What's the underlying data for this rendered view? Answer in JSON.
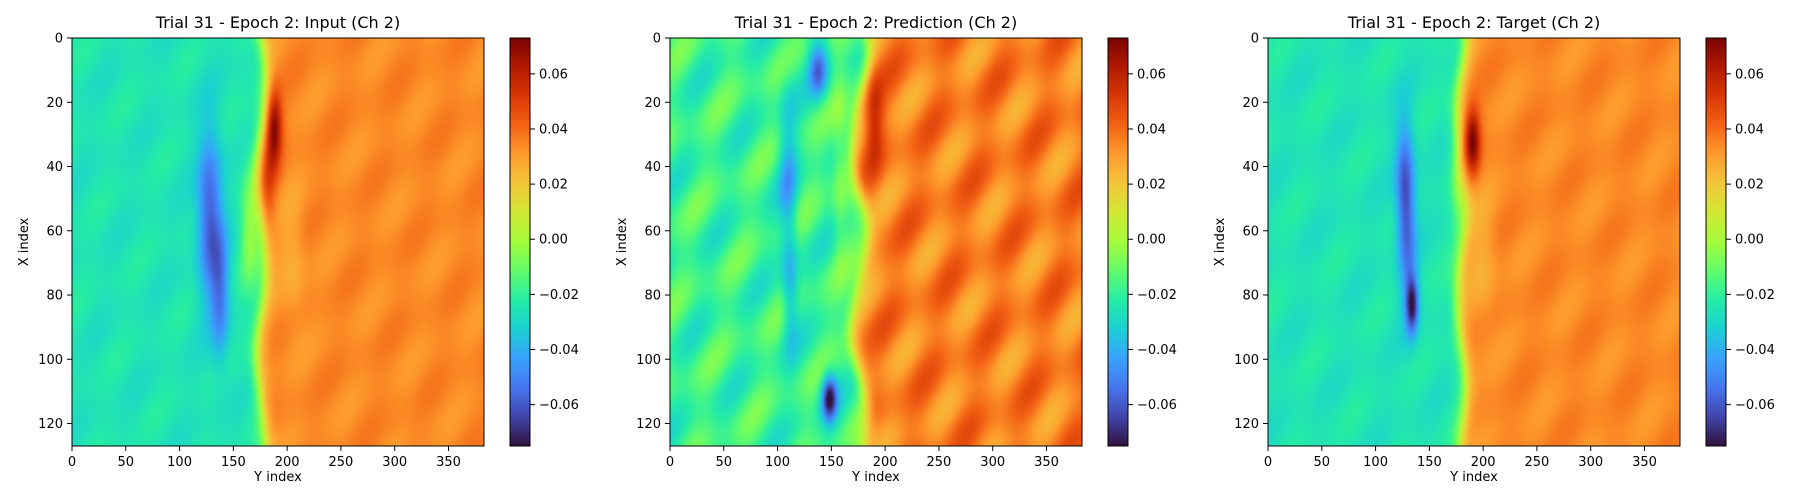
{
  "chart_data": [
    {
      "type": "heatmap",
      "title": "Trial 31 - Epoch 2: Input (Ch 2)",
      "xlabel": "Y index",
      "ylabel": "X index",
      "xlim": [
        0,
        383
      ],
      "ylim": [
        127,
        0
      ],
      "xticks": [
        0,
        50,
        100,
        150,
        200,
        250,
        300,
        350
      ],
      "yticks": [
        0,
        20,
        40,
        60,
        80,
        100,
        120
      ],
      "colormap": "turbo",
      "grid": false,
      "colorbar": {
        "min": -0.075,
        "max": 0.073,
        "ticks": [
          "0.06",
          "0.04",
          "0.02",
          "0.00",
          "−0.02",
          "−0.04",
          "−0.06"
        ],
        "tick_values": [
          0.06,
          0.04,
          0.02,
          0.0,
          -0.02,
          -0.04,
          -0.06
        ]
      },
      "field": {
        "left_value": -0.025,
        "right_value": 0.034,
        "front_y": 176,
        "front_wiggle": 4,
        "ripple": 0.004,
        "features": [
          {
            "x": 55,
            "y": 128,
            "sx": 18,
            "sy": 8,
            "v": -0.035
          },
          {
            "x": 80,
            "y": 138,
            "sx": 14,
            "sy": 6,
            "v": -0.025
          },
          {
            "x": 28,
            "y": 188,
            "sx": 8,
            "sy": 5,
            "v": 0.038
          },
          {
            "x": 45,
            "y": 182,
            "sx": 10,
            "sy": 5,
            "v": 0.015
          },
          {
            "x": 60,
            "y": 165,
            "sx": 12,
            "sy": 6,
            "v": 0.02
          },
          {
            "x": 70,
            "y": 205,
            "sx": 15,
            "sy": 8,
            "v": -0.008
          }
        ]
      }
    },
    {
      "type": "heatmap",
      "title": "Trial 31 - Epoch 2: Prediction (Ch 2)",
      "xlabel": "Y index",
      "ylabel": "X index",
      "xlim": [
        0,
        383
      ],
      "ylim": [
        127,
        0
      ],
      "xticks": [
        0,
        50,
        100,
        150,
        200,
        250,
        300,
        350
      ],
      "yticks": [
        0,
        20,
        40,
        60,
        80,
        100,
        120
      ],
      "colormap": "turbo",
      "grid": false,
      "colorbar": {
        "min": -0.075,
        "max": 0.073,
        "ticks": [
          "0.06",
          "0.04",
          "0.02",
          "0.00",
          "−0.02",
          "−0.04",
          "−0.06"
        ],
        "tick_values": [
          0.06,
          0.04,
          0.02,
          0.0,
          -0.02,
          -0.04,
          -0.06
        ]
      },
      "field": {
        "left_value": -0.018,
        "right_value": 0.036,
        "front_y": 176,
        "front_wiggle": 8,
        "ripple": 0.012,
        "features": [
          {
            "x": 112,
            "y": 148,
            "sx": 5,
            "sy": 5,
            "v": -0.055
          },
          {
            "x": 10,
            "y": 138,
            "sx": 6,
            "sy": 6,
            "v": -0.035
          },
          {
            "x": 45,
            "y": 110,
            "sx": 20,
            "sy": 6,
            "v": -0.02
          },
          {
            "x": 80,
            "y": 112,
            "sx": 12,
            "sy": 5,
            "v": -0.018
          },
          {
            "x": 25,
            "y": 190,
            "sx": 10,
            "sy": 6,
            "v": 0.02
          },
          {
            "x": 40,
            "y": 158,
            "sx": 18,
            "sy": 5,
            "v": 0.012
          }
        ]
      }
    },
    {
      "type": "heatmap",
      "title": "Trial 31 - Epoch 2: Target (Ch 2)",
      "xlabel": "Y index",
      "ylabel": "X index",
      "xlim": [
        0,
        383
      ],
      "ylim": [
        127,
        0
      ],
      "xticks": [
        0,
        50,
        100,
        150,
        200,
        250,
        300,
        350
      ],
      "yticks": [
        0,
        20,
        40,
        60,
        80,
        100,
        120
      ],
      "colormap": "turbo",
      "grid": false,
      "colorbar": {
        "min": -0.075,
        "max": 0.073,
        "ticks": [
          "0.06",
          "0.04",
          "0.02",
          "0.00",
          "−0.02",
          "−0.04",
          "−0.06"
        ],
        "tick_values": [
          0.06,
          0.04,
          0.02,
          0.0,
          -0.02,
          -0.04,
          -0.06
        ]
      },
      "field": {
        "left_value": -0.025,
        "right_value": 0.034,
        "front_y": 180,
        "front_wiggle": 4,
        "ripple": 0.004,
        "features": [
          {
            "x": 45,
            "y": 127,
            "sx": 14,
            "sy": 6,
            "v": -0.03
          },
          {
            "x": 83,
            "y": 134,
            "sx": 6,
            "sy": 4,
            "v": -0.045
          },
          {
            "x": 65,
            "y": 130,
            "sx": 16,
            "sy": 6,
            "v": -0.02
          },
          {
            "x": 32,
            "y": 190,
            "sx": 7,
            "sy": 5,
            "v": 0.04
          },
          {
            "x": 45,
            "y": 178,
            "sx": 10,
            "sy": 5,
            "v": 0.015
          },
          {
            "x": 70,
            "y": 200,
            "sx": 15,
            "sy": 8,
            "v": -0.008
          }
        ]
      }
    }
  ]
}
